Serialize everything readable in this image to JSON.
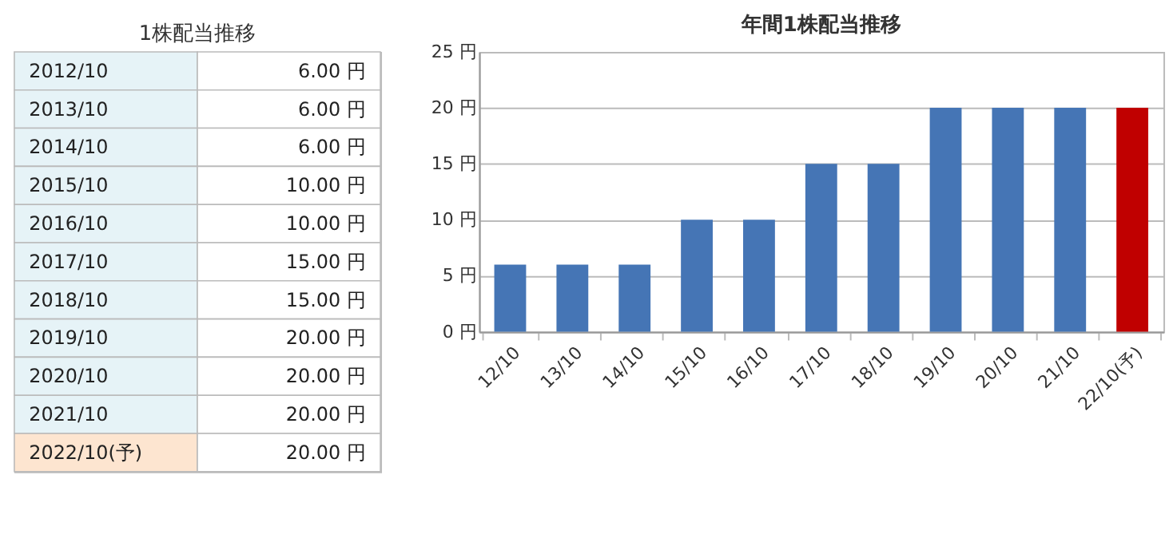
{
  "chart_data": [
    {
      "type": "other",
      "title": "1株配当推移",
      "annotations": [
        "2012/10",
        "6.00 円",
        "2013/10",
        "6.00 円",
        "2014/10",
        "6.00 円",
        "2015/10",
        "10.00 円",
        "2016/10",
        "10.00 円",
        "2017/10",
        "15.00 円",
        "2018/10",
        "15.00 円",
        "2019/10",
        "20.00 円",
        "2020/10",
        "20.00 円",
        "2021/10",
        "20.00 円",
        "2022/10(予)",
        "20.00 円"
      ]
    },
    {
      "type": "bar",
      "title": "年間1株配当推移",
      "categories": [
        "12/10",
        "13/10",
        "14/10",
        "15/10",
        "16/10",
        "17/10",
        "18/10",
        "19/10",
        "20/10",
        "21/10",
        "22/10(予)"
      ],
      "values": [
        6,
        6,
        6,
        10,
        10,
        15,
        15,
        20,
        20,
        20,
        20
      ],
      "colors": [
        "#4575b5",
        "#4575b5",
        "#4575b5",
        "#4575b5",
        "#4575b5",
        "#4575b5",
        "#4575b5",
        "#4575b5",
        "#4575b5",
        "#4575b5",
        "#c00000"
      ],
      "ylim": [
        0,
        25
      ],
      "yticks": [
        {
          "value": 0,
          "label": "0 円"
        },
        {
          "value": 5,
          "label": "5 円"
        },
        {
          "value": 10,
          "label": "10 円"
        },
        {
          "value": 15,
          "label": "15 円"
        },
        {
          "value": 20,
          "label": "20 円"
        },
        {
          "value": 25,
          "label": "25 円"
        }
      ],
      "grid": "y",
      "legend": false
    }
  ]
}
